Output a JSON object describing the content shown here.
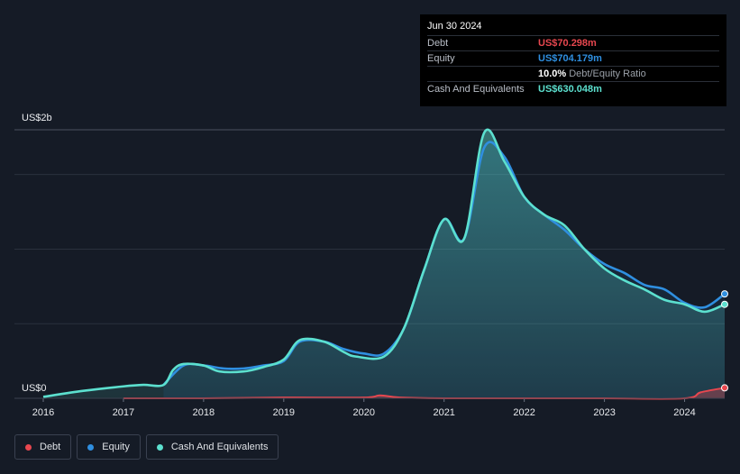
{
  "tooltip": {
    "date": "Jun 30 2024",
    "rows": [
      {
        "label": "Debt",
        "value": "US$70.298m",
        "color": "#e8474f"
      },
      {
        "label": "Equity",
        "value": "US$704.179m",
        "color": "#2f8fe0"
      },
      {
        "ratio_value": "10.0%",
        "ratio_label": "Debt/Equity Ratio"
      },
      {
        "label": "Cash And Equivalents",
        "value": "US$630.048m",
        "color": "#5ce0cf"
      }
    ]
  },
  "legend": [
    {
      "label": "Debt",
      "color": "#e8474f"
    },
    {
      "label": "Equity",
      "color": "#2f8fe0"
    },
    {
      "label": "Cash And Equivalents",
      "color": "#5ce0cf"
    }
  ],
  "chart_data": {
    "type": "area",
    "y_top_label": "US$2b",
    "y_bottom_label": "US$0",
    "ylim": [
      0,
      1.8
    ],
    "xlim": [
      2016.0,
      2024.5
    ],
    "x_ticks": [
      "2016",
      "2017",
      "2018",
      "2019",
      "2020",
      "2021",
      "2022",
      "2023",
      "2024"
    ],
    "grid": true,
    "series": [
      {
        "name": "Cash And Equivalents",
        "color": "#5ce0cf",
        "x": [
          2016.0,
          2016.5,
          2017.0,
          2017.25,
          2017.5,
          2017.62,
          2017.75,
          2018.0,
          2018.2,
          2018.5,
          2018.75,
          2019.0,
          2019.2,
          2019.5,
          2019.75,
          2019.9,
          2020.25,
          2020.5,
          2020.75,
          2021.0,
          2021.25,
          2021.5,
          2021.75,
          2022.0,
          2022.25,
          2022.5,
          2022.75,
          2023.0,
          2023.25,
          2023.5,
          2023.75,
          2024.0,
          2024.25,
          2024.5
        ],
        "values": [
          0.01,
          0.05,
          0.08,
          0.09,
          0.09,
          0.19,
          0.23,
          0.22,
          0.18,
          0.18,
          0.21,
          0.26,
          0.39,
          0.38,
          0.31,
          0.28,
          0.28,
          0.47,
          0.86,
          1.2,
          1.07,
          1.78,
          1.59,
          1.35,
          1.23,
          1.16,
          1.0,
          0.87,
          0.79,
          0.73,
          0.66,
          0.63,
          0.58,
          0.63
        ]
      },
      {
        "name": "Equity",
        "color": "#2f8fe0",
        "x": [
          2017.5,
          2017.75,
          2018.0,
          2018.25,
          2018.5,
          2018.75,
          2019.0,
          2019.2,
          2019.5,
          2019.75,
          2020.0,
          2020.25,
          2020.5,
          2020.75,
          2021.0,
          2021.25,
          2021.5,
          2021.75,
          2022.0,
          2022.25,
          2022.5,
          2022.75,
          2023.0,
          2023.25,
          2023.5,
          2023.75,
          2024.0,
          2024.25,
          2024.5
        ],
        "values": [
          0.09,
          0.22,
          0.22,
          0.2,
          0.2,
          0.22,
          0.25,
          0.38,
          0.38,
          0.33,
          0.3,
          0.3,
          0.47,
          0.86,
          1.2,
          1.07,
          1.68,
          1.62,
          1.35,
          1.23,
          1.13,
          1.0,
          0.9,
          0.84,
          0.76,
          0.73,
          0.64,
          0.61,
          0.7
        ]
      },
      {
        "name": "Debt",
        "color": "#e8474f",
        "x": [
          2017.0,
          2018.0,
          2019.0,
          2020.0,
          2020.2,
          2020.45,
          2021.0,
          2022.0,
          2023.0,
          2024.0,
          2024.2,
          2024.5
        ],
        "values": [
          0.0,
          0.0,
          0.005,
          0.005,
          0.02,
          0.005,
          0.0,
          0.0,
          0.0,
          0.0,
          0.04,
          0.07
        ]
      }
    ]
  }
}
